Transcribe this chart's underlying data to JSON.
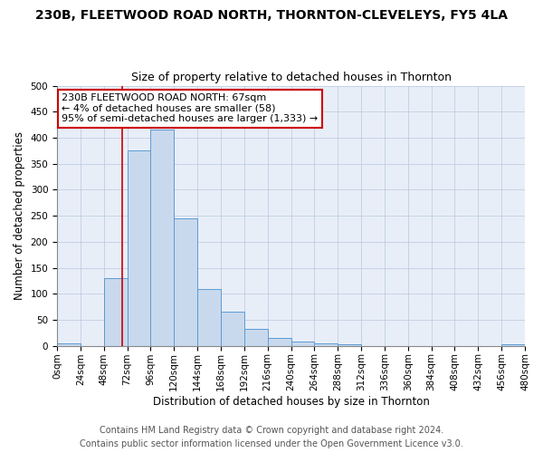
{
  "title1": "230B, FLEETWOOD ROAD NORTH, THORNTON-CLEVELEYS, FY5 4LA",
  "title2": "Size of property relative to detached houses in Thornton",
  "xlabel": "Distribution of detached houses by size in Thornton",
  "ylabel": "Number of detached properties",
  "bin_edges": [
    0,
    24,
    48,
    72,
    96,
    120,
    144,
    168,
    192,
    216,
    240,
    264,
    288,
    312,
    336,
    360,
    384,
    408,
    432,
    456,
    480
  ],
  "bar_heights": [
    5,
    0,
    130,
    375,
    415,
    245,
    110,
    65,
    33,
    15,
    8,
    5,
    3,
    0,
    0,
    0,
    0,
    0,
    0,
    3
  ],
  "bar_facecolor": "#c9d9ed",
  "bar_edgecolor": "#5b9bd5",
  "property_size": 67,
  "vline_color": "#cc0000",
  "annotation_line1": "230B FLEETWOOD ROAD NORTH: 67sqm",
  "annotation_line2": "← 4% of detached houses are smaller (58)",
  "annotation_line3": "95% of semi-detached houses are larger (1,333) →",
  "annotation_box_edgecolor": "#cc0000",
  "annotation_box_facecolor": "#ffffff",
  "ylim": [
    0,
    500
  ],
  "yticks": [
    0,
    50,
    100,
    150,
    200,
    250,
    300,
    350,
    400,
    450,
    500
  ],
  "footer1": "Contains HM Land Registry data © Crown copyright and database right 2024.",
  "footer2": "Contains public sector information licensed under the Open Government Licence v3.0.",
  "plot_bg_color": "#e8eef8",
  "title1_fontsize": 10,
  "title2_fontsize": 9,
  "tick_fontsize": 7.5,
  "label_fontsize": 8.5,
  "annotation_fontsize": 8,
  "footer_fontsize": 7
}
